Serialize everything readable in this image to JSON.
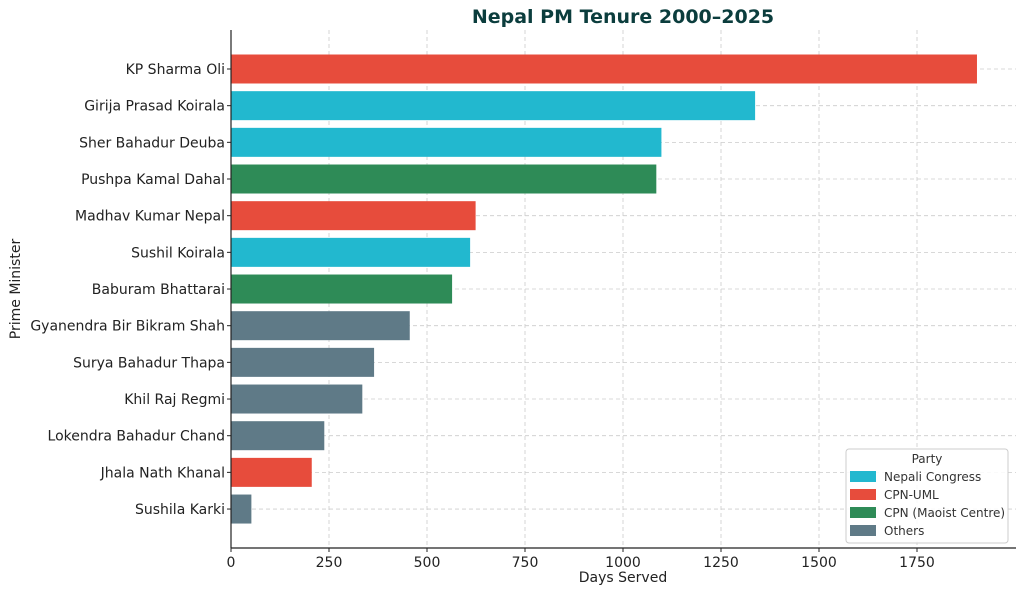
{
  "chart_data": {
    "type": "bar",
    "orientation": "horizontal",
    "title": "Nepal PM Tenure 2000–2025",
    "xlabel": "Days Served",
    "ylabel": "Prime Minister",
    "xlim": [
      0,
      2000
    ],
    "xticks": [
      0,
      250,
      500,
      750,
      1000,
      1250,
      1500,
      1750
    ],
    "grid": true,
    "legend": {
      "title": "Party",
      "placement": "bottom-right",
      "entries": [
        {
          "name": "Nepali Congress",
          "color": "#22b8cf"
        },
        {
          "name": "CPN-UML",
          "color": "#e74c3c"
        },
        {
          "name": "CPN (Maoist Centre)",
          "color": "#2e8b57"
        },
        {
          "name": "Others",
          "color": "#5f7a87"
        }
      ]
    },
    "bars": [
      {
        "name": "KP Sharma Oli",
        "value": 1903,
        "party": "CPN-UML"
      },
      {
        "name": "Girija Prasad Koirala",
        "value": 1337,
        "party": "Nepali Congress"
      },
      {
        "name": "Sher Bahadur Deuba",
        "value": 1098,
        "party": "Nepali Congress"
      },
      {
        "name": "Pushpa Kamal Dahal",
        "value": 1085,
        "party": "CPN (Maoist Centre)"
      },
      {
        "name": "Madhav Kumar Nepal",
        "value": 624,
        "party": "CPN-UML"
      },
      {
        "name": "Sushil Koirala",
        "value": 610,
        "party": "Nepali Congress"
      },
      {
        "name": "Baburam Bhattarai",
        "value": 564,
        "party": "CPN (Maoist Centre)"
      },
      {
        "name": "Gyanendra Bir Bikram Shah",
        "value": 456,
        "party": "Others"
      },
      {
        "name": "Surya Bahadur Thapa",
        "value": 365,
        "party": "Others"
      },
      {
        "name": "Khil Raj Regmi",
        "value": 335,
        "party": "Others"
      },
      {
        "name": "Lokendra Bahadur Chand",
        "value": 238,
        "party": "Others"
      },
      {
        "name": "Jhala Nath Khanal",
        "value": 206,
        "party": "CPN-UML"
      },
      {
        "name": "Sushila Karki",
        "value": 52,
        "party": "Others"
      }
    ]
  }
}
